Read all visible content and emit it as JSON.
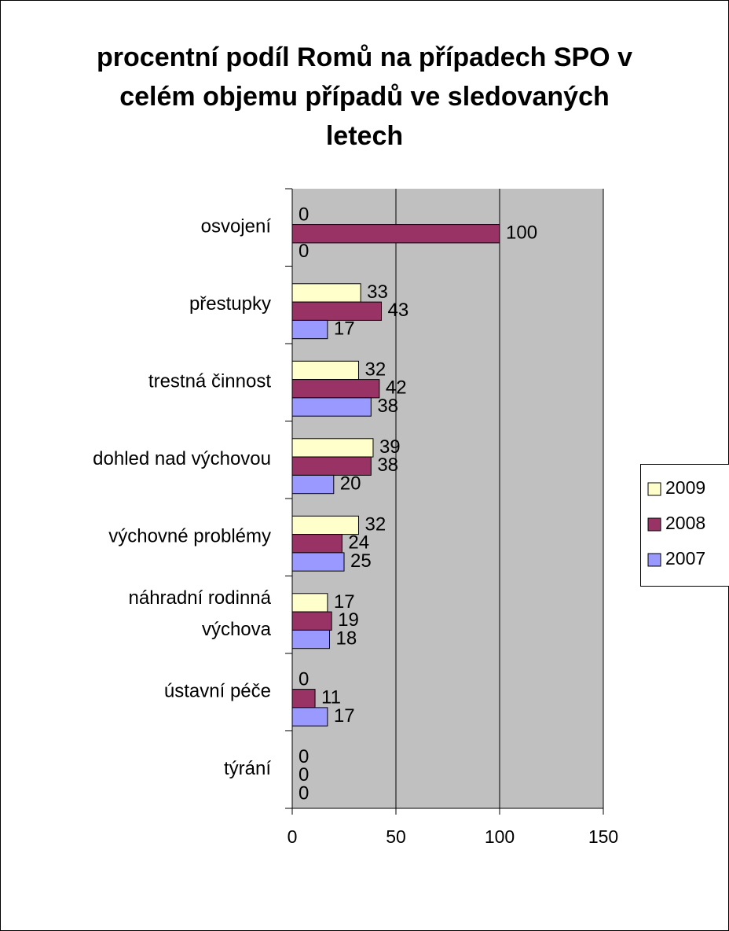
{
  "chart_data": {
    "type": "bar",
    "orientation": "horizontal",
    "title": "procentní podíl Romů na případech SPO v celém objemu případů ve sledovaných letech",
    "categories": [
      "osvojení",
      "přestupky",
      "trestná činnost",
      "dohled nad výchovou",
      "výchovné problémy",
      "náhradní rodinná výchova",
      "ústavní péče",
      "týrání"
    ],
    "series": [
      {
        "name": "2009",
        "color": "#ffffcc",
        "values": [
          0,
          33,
          32,
          39,
          32,
          17,
          0,
          0
        ]
      },
      {
        "name": "2008",
        "color": "#993366",
        "values": [
          100,
          43,
          42,
          38,
          24,
          19,
          11,
          0
        ]
      },
      {
        "name": "2007",
        "color": "#9999ff",
        "values": [
          0,
          17,
          38,
          20,
          25,
          18,
          17,
          0
        ]
      }
    ],
    "xlim": [
      0,
      150
    ],
    "xticks": [
      0,
      50,
      100,
      150
    ],
    "grid": true,
    "legend": "right"
  }
}
